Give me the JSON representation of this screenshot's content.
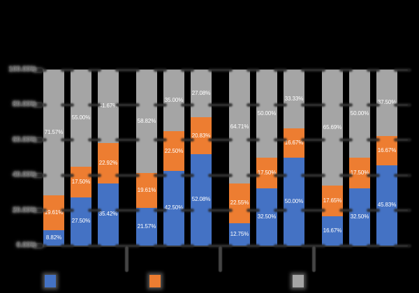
{
  "chart_data": {
    "type": "bar",
    "subtype": "100%-stacked-clustered",
    "title": "",
    "legend_position": "bottom",
    "gridlines": true,
    "stack_order_bottom_to_top": [
      "blue-series",
      "orange-series",
      "gray-series"
    ],
    "series": [
      {
        "name": "blue-series",
        "color": "#4472C4"
      },
      {
        "name": "orange-series",
        "color": "#ED7D31"
      },
      {
        "name": "gray-series",
        "color": "#A5A5A5"
      }
    ],
    "y_axis": {
      "min": "0%",
      "max": "100%",
      "tick_labels_top_to_bottom": [
        "100.00%",
        "80.00%",
        "60.00%",
        "40.00%",
        "20.00%",
        "0.00%"
      ]
    },
    "groups": [
      {
        "bars": [
          {
            "segments": [
              "8.82%",
              "19.61%",
              "71.57%"
            ]
          },
          {
            "segments": [
              "27.50%",
              "17.50%",
              "55.00%"
            ]
          },
          {
            "segments": [
              "35.42%",
              "22.92%",
              "41.67%"
            ]
          }
        ]
      },
      {
        "bars": [
          {
            "segments": [
              "21.57%",
              "19.61%",
              "58.82%"
            ]
          },
          {
            "segments": [
              "42.50%",
              "22.50%",
              "35.00%"
            ]
          },
          {
            "segments": [
              "52.08%",
              "20.83%",
              "27.08%"
            ]
          }
        ]
      },
      {
        "bars": [
          {
            "segments": [
              "12.75%",
              "22.55%",
              "64.71%"
            ]
          },
          {
            "segments": [
              "32.50%",
              "17.50%",
              "50.00%"
            ]
          },
          {
            "segments": [
              "50.00%",
              "16.67%",
              "33.33%"
            ]
          }
        ]
      },
      {
        "bars": [
          {
            "segments": [
              "16.67%",
              "17.65%",
              "65.69%"
            ]
          },
          {
            "segments": [
              "32.50%",
              "17.50%",
              "50.00%"
            ]
          },
          {
            "segments": [
              "45.83%",
              "16.67%",
              "37.50%"
            ]
          }
        ]
      }
    ]
  },
  "style_colors": {
    "background": "#000000",
    "data_label": "#FFFFFF",
    "gridline": "#3A3A3A"
  }
}
